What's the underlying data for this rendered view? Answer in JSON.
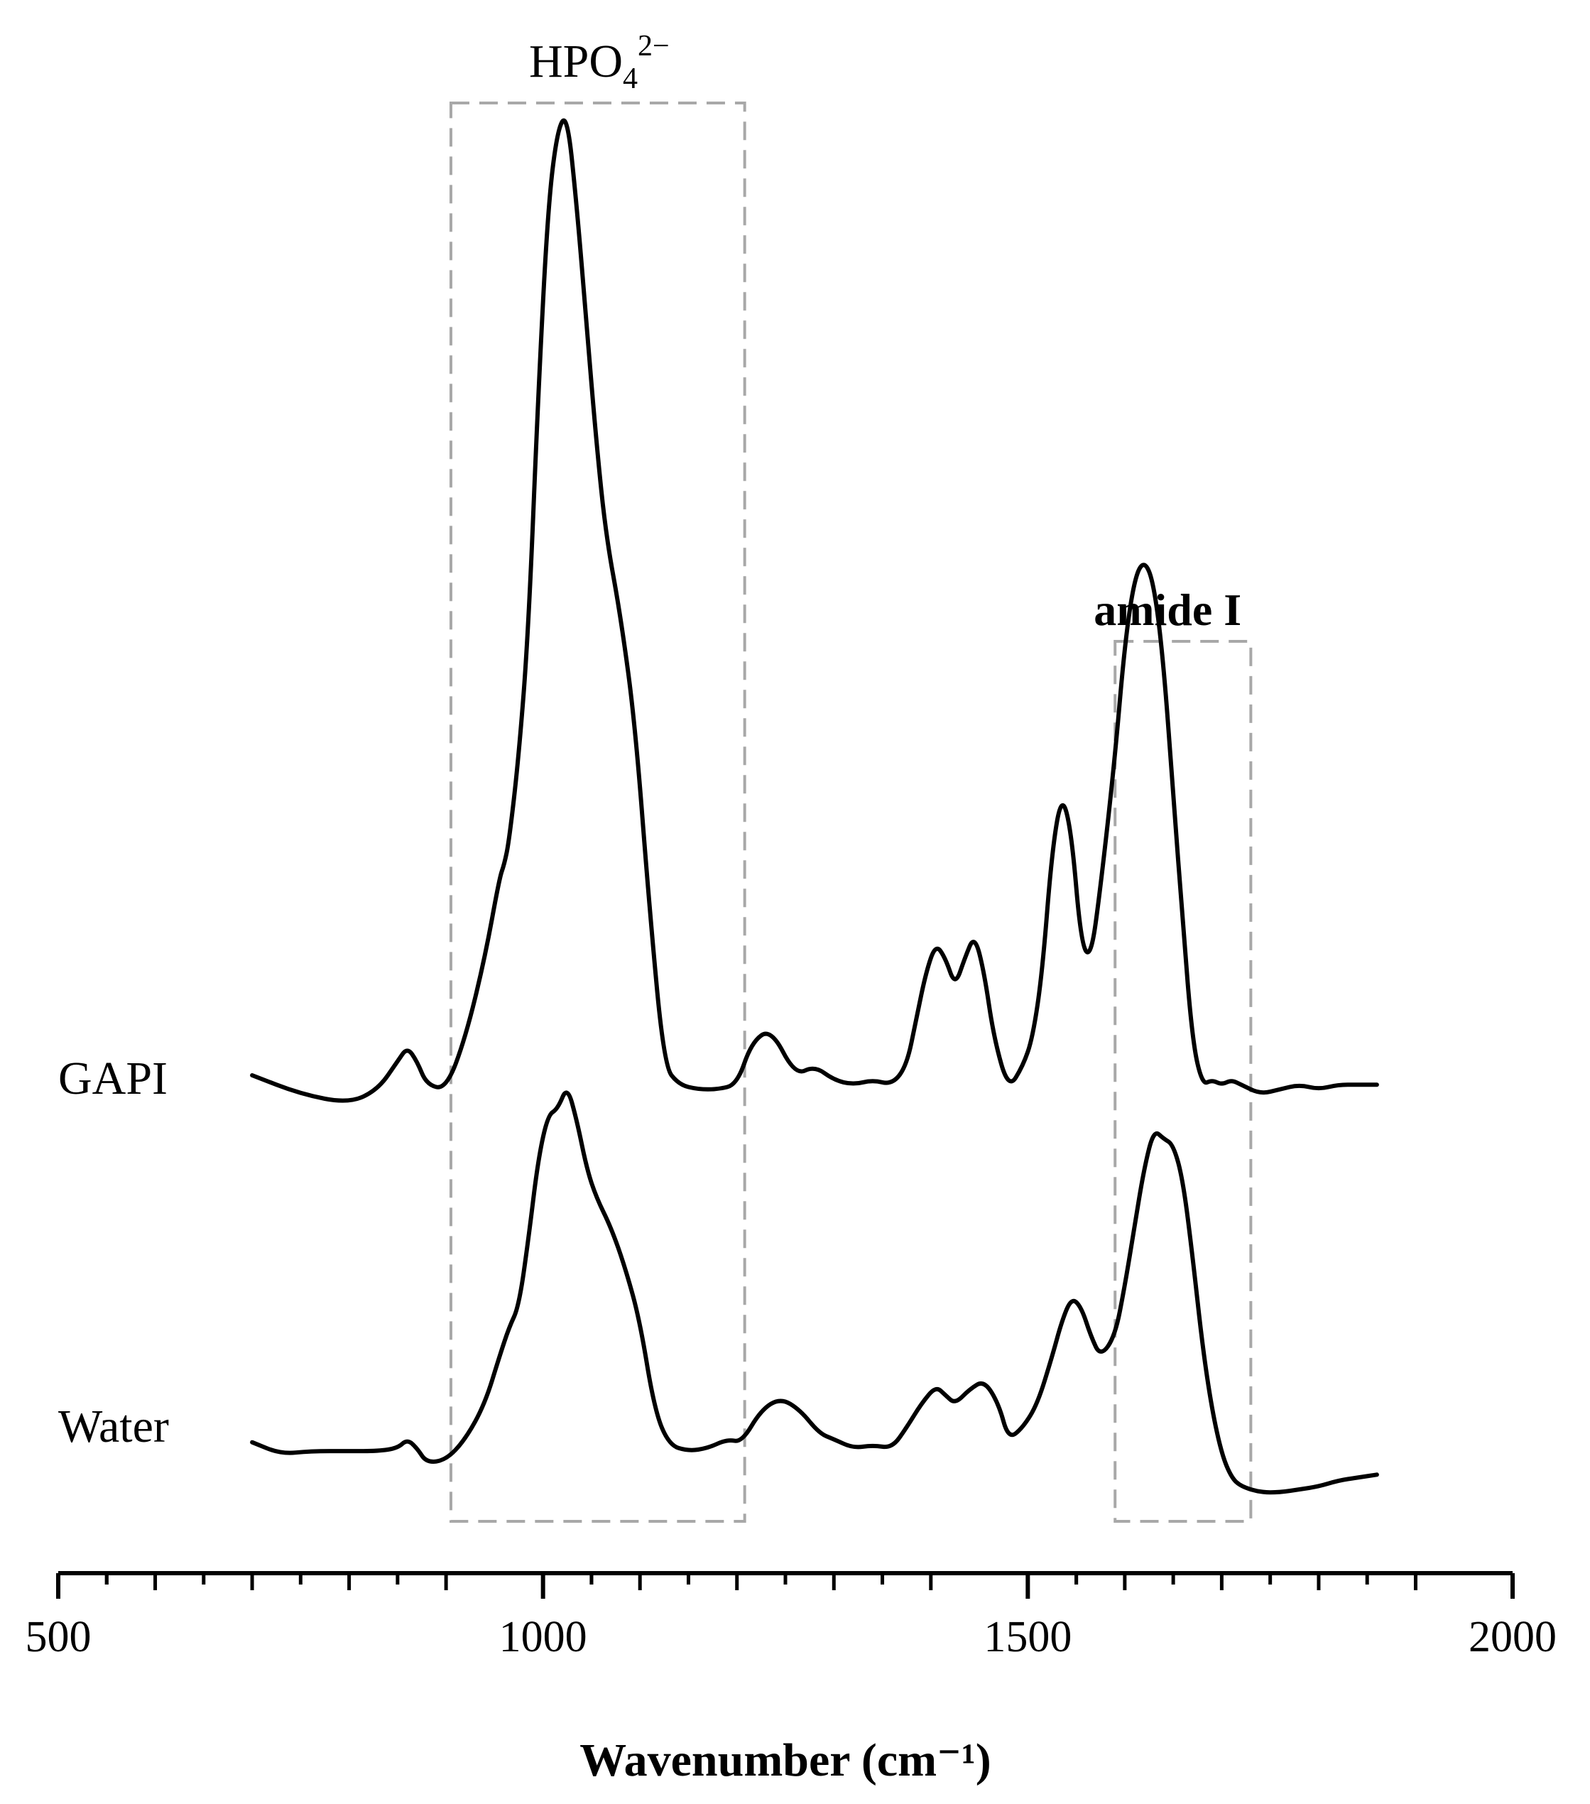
{
  "chart_data": {
    "type": "line",
    "xlabel": "Wavenumber (cm⁻¹)",
    "xlim": [
      500,
      2000
    ],
    "xticks": [
      "500",
      "1000",
      "1500",
      "2000"
    ],
    "y_axis_shown": false,
    "grid": false,
    "series": [
      {
        "name": "GAPI",
        "color": "#000000",
        "x": [
          700,
          750,
          800,
          830,
          850,
          860,
          870,
          880,
          900,
          920,
          940,
          955,
          960,
          965,
          975,
          985,
          995,
          1005,
          1015,
          1025,
          1035,
          1045,
          1055,
          1065,
          1080,
          1095,
          1110,
          1125,
          1140,
          1160,
          1180,
          1200,
          1215,
          1235,
          1260,
          1280,
          1300,
          1320,
          1340,
          1360,
          1375,
          1385,
          1395,
          1405,
          1415,
          1425,
          1435,
          1445,
          1455,
          1465,
          1480,
          1495,
          1505,
          1515,
          1525,
          1535,
          1545,
          1555,
          1565,
          1575,
          1590,
          1600,
          1610,
          1620,
          1630,
          1640,
          1650,
          1660,
          1670,
          1680,
          1690,
          1700,
          1710,
          1720,
          1740,
          1760,
          1780,
          1800,
          1820,
          1840,
          1860
        ],
        "values": [
          0.1,
          0.06,
          0.04,
          0.07,
          0.13,
          0.16,
          0.13,
          0.08,
          0.07,
          0.18,
          0.35,
          0.52,
          0.55,
          0.6,
          0.78,
          1.05,
          1.55,
          1.95,
          2.12,
          2.15,
          1.95,
          1.7,
          1.45,
          1.25,
          1.08,
          0.85,
          0.45,
          0.12,
          0.08,
          0.07,
          0.07,
          0.08,
          0.17,
          0.2,
          0.1,
          0.12,
          0.09,
          0.08,
          0.09,
          0.08,
          0.12,
          0.22,
          0.32,
          0.38,
          0.35,
          0.29,
          0.35,
          0.4,
          0.32,
          0.18,
          0.07,
          0.12,
          0.18,
          0.32,
          0.58,
          0.7,
          0.62,
          0.38,
          0.35,
          0.5,
          0.78,
          1.02,
          1.16,
          1.2,
          1.15,
          0.98,
          0.7,
          0.42,
          0.17,
          0.08,
          0.09,
          0.08,
          0.09,
          0.08,
          0.06,
          0.07,
          0.08,
          0.07,
          0.08,
          0.08,
          0.08
        ]
      },
      {
        "name": "Water",
        "color": "#000000",
        "x": [
          700,
          730,
          760,
          800,
          830,
          850,
          860,
          870,
          880,
          900,
          920,
          940,
          955,
          965,
          975,
          985,
          995,
          1005,
          1015,
          1025,
          1035,
          1045,
          1055,
          1070,
          1085,
          1100,
          1115,
          1130,
          1150,
          1170,
          1190,
          1205,
          1225,
          1245,
          1265,
          1285,
          1300,
          1320,
          1340,
          1360,
          1375,
          1390,
          1405,
          1415,
          1425,
          1440,
          1455,
          1470,
          1480,
          1495,
          1510,
          1525,
          1535,
          1545,
          1555,
          1565,
          1575,
          1590,
          1600,
          1610,
          1620,
          1630,
          1640,
          1650,
          1660,
          1670,
          1680,
          1690,
          1700,
          1710,
          1720,
          1740,
          1760,
          1780,
          1800,
          1820,
          1840,
          1860
        ],
        "values": [
          0.09,
          0.05,
          0.06,
          0.06,
          0.06,
          0.07,
          0.1,
          0.07,
          0.02,
          0.03,
          0.1,
          0.22,
          0.38,
          0.48,
          0.55,
          0.78,
          1.05,
          1.2,
          1.22,
          1.3,
          1.18,
          1.02,
          0.92,
          0.82,
          0.68,
          0.5,
          0.2,
          0.08,
          0.06,
          0.07,
          0.1,
          0.09,
          0.2,
          0.24,
          0.2,
          0.12,
          0.1,
          0.07,
          0.08,
          0.07,
          0.14,
          0.22,
          0.28,
          0.25,
          0.22,
          0.27,
          0.3,
          0.22,
          0.1,
          0.14,
          0.22,
          0.38,
          0.5,
          0.58,
          0.55,
          0.45,
          0.38,
          0.45,
          0.62,
          0.82,
          1.02,
          1.15,
          1.12,
          1.1,
          0.98,
          0.72,
          0.42,
          0.2,
          0.05,
          -0.03,
          -0.06,
          -0.08,
          -0.08,
          -0.07,
          -0.06,
          -0.04,
          -0.03,
          -0.02
        ]
      }
    ],
    "annotations": [
      {
        "label_main": "HPO",
        "label_sub": "4",
        "label_sup": "2−",
        "x_range": [
          905,
          1208
        ]
      },
      {
        "label": "amide I",
        "x_range": [
          1590,
          1730
        ]
      }
    ]
  }
}
